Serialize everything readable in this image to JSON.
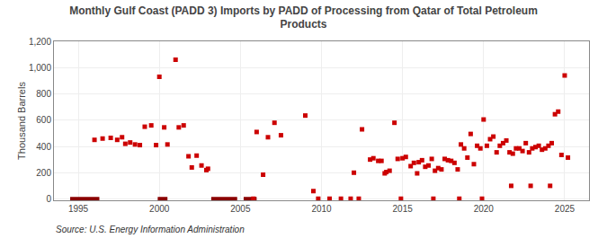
{
  "chart_data": {
    "type": "scatter",
    "title": "Monthly Gulf Coast (PADD 3) Imports by PADD of Processing from Qatar of Total Petroleum\nProducts",
    "ylabel": "Thousand Barrels",
    "annotations": [
      "Source: U.S. Energy Information Administration"
    ],
    "xlim": [
      1993.5,
      2026.5
    ],
    "ylim": [
      -10,
      1200
    ],
    "xticks": [
      1995,
      2000,
      2005,
      2010,
      2015,
      2020,
      2025
    ],
    "yticks": [
      0,
      200,
      400,
      600,
      800,
      {
        "value": 1000,
        "label": "1,000"
      },
      {
        "value": 1200,
        "label": "1,200"
      }
    ],
    "grid": true,
    "series": [
      {
        "type": "line",
        "color": "#8b0000",
        "line_style": "solid",
        "x": [
          1994.5,
          1996.3,
          null,
          1999.9,
          2000.5,
          null,
          2003.2,
          2004.8,
          null,
          2005.2,
          2006.0
        ],
        "values": [
          2,
          2,
          null,
          2,
          2,
          null,
          2,
          2,
          null,
          2,
          2
        ]
      },
      {
        "type": "scatter",
        "color": "#cc0000",
        "marker": "square",
        "x": [
          2005.8,
          2009.8,
          2010.5,
          2011.2,
          2011.8,
          2012.3,
          2014.9,
          2016.9,
          2018.5,
          2019.9,
          2021.7,
          2022.9,
          2024.1
        ],
        "values": [
          2,
          2,
          2,
          2,
          2,
          2,
          2,
          2,
          2,
          2,
          100,
          100,
          100
        ]
      },
      {
        "type": "scatter",
        "color": "#cc0000",
        "marker": "square",
        "x": [
          1996.0,
          1996.5,
          1997.0,
          1997.4,
          1997.7,
          1997.9,
          1998.2,
          1998.5,
          1998.8,
          1999.1,
          1999.5,
          1999.8,
          2000.0,
          2000.3,
          2000.5,
          2001.0,
          2001.2,
          2001.5,
          2001.8,
          2002.0,
          2002.3,
          2002.6,
          2002.9,
          2003.0,
          2006.0,
          2006.4,
          2006.7,
          2007.1,
          2007.5,
          2009.0,
          2009.5,
          2012.0,
          2012.5,
          2013.0,
          2013.2,
          2013.5,
          2013.7,
          2013.9,
          2014.0,
          2014.2,
          2014.5,
          2014.7,
          2015.0,
          2015.2,
          2015.5,
          2015.7,
          2015.9,
          2016.0,
          2016.2,
          2016.4,
          2016.6,
          2016.8,
          2017.0,
          2017.2,
          2017.4,
          2017.6,
          2017.8,
          2018.0,
          2018.2,
          2018.4,
          2018.6,
          2018.8,
          2019.0,
          2019.2,
          2019.4,
          2019.6,
          2019.8,
          2020.0,
          2020.2,
          2020.4,
          2020.6,
          2020.8,
          2021.0,
          2021.2,
          2021.4,
          2021.6,
          2021.8,
          2022.0,
          2022.2,
          2022.4,
          2022.6,
          2022.8,
          2023.0,
          2023.2,
          2023.4,
          2023.6,
          2023.8,
          2024.0,
          2024.2,
          2024.4,
          2024.6,
          2024.8,
          2025.0,
          2025.2
        ],
        "values": [
          450,
          460,
          465,
          450,
          470,
          420,
          430,
          415,
          410,
          550,
          560,
          410,
          930,
          545,
          415,
          1060,
          545,
          560,
          325,
          240,
          330,
          255,
          220,
          230,
          510,
          185,
          470,
          580,
          485,
          635,
          60,
          200,
          530,
          300,
          310,
          290,
          290,
          195,
          205,
          215,
          580,
          305,
          310,
          320,
          250,
          275,
          195,
          280,
          295,
          245,
          255,
          305,
          215,
          235,
          225,
          305,
          295,
          290,
          275,
          225,
          415,
          385,
          315,
          495,
          265,
          405,
          385,
          605,
          405,
          455,
          475,
          355,
          405,
          425,
          445,
          355,
          345,
          385,
          385,
          365,
          425,
          355,
          385,
          395,
          405,
          375,
          385,
          405,
          425,
          645,
          665,
          335,
          940,
          315
        ]
      }
    ]
  }
}
